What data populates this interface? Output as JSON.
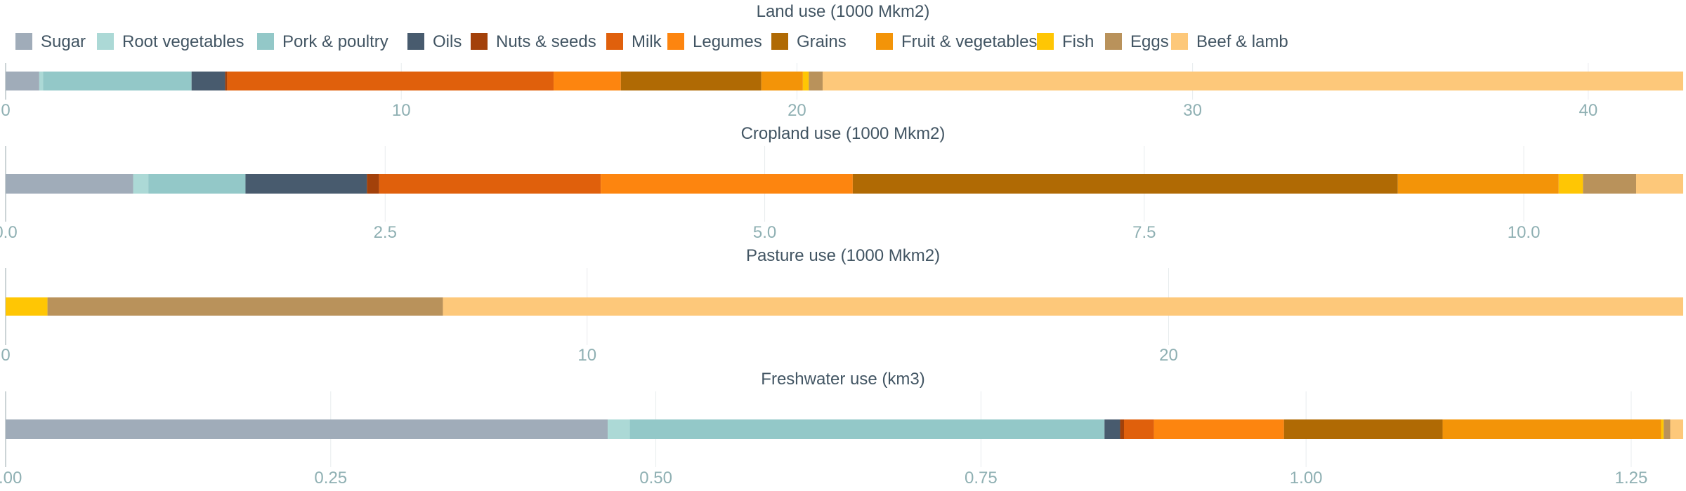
{
  "chart_data": {
    "type": "bar",
    "orientation": "horizontal-stacked",
    "legend": {
      "placement": "top-left",
      "entries": [
        {
          "name": "Sugar",
          "color": "#a0acb9"
        },
        {
          "name": "Root vegetables",
          "color": "#acd9d6"
        },
        {
          "name": "Pork & poultry",
          "color": "#93c8c8"
        },
        {
          "name": "Oils",
          "color": "#485b6e"
        },
        {
          "name": "Nuts & seeds",
          "color": "#a3410a"
        },
        {
          "name": "Milk",
          "color": "#e0600c"
        },
        {
          "name": "Legumes",
          "color": "#fd850f"
        },
        {
          "name": "Grains",
          "color": "#b06a04"
        },
        {
          "name": "Fruit & vegetables",
          "color": "#f39408"
        },
        {
          "name": "Fish",
          "color": "#ffc604"
        },
        {
          "name": "Eggs",
          "color": "#b9925b"
        },
        {
          "name": "Beef & lamb",
          "color": "#fdc87a"
        }
      ]
    },
    "grid": true,
    "panels": [
      {
        "title": "Land use (1000 Mkm2)",
        "xlim": [
          0,
          42.4
        ],
        "ticks": [
          0,
          10,
          20,
          30,
          40
        ],
        "tick_labels": [
          "0",
          "10",
          "20",
          "30",
          "40"
        ],
        "segments": [
          {
            "name": "Sugar",
            "value": 0.85
          },
          {
            "name": "Root vegetables",
            "value": 0.1
          },
          {
            "name": "Pork & poultry",
            "value": 3.75
          },
          {
            "name": "Oils",
            "value": 0.85
          },
          {
            "name": "Nuts & seeds",
            "value": 0.05
          },
          {
            "name": "Milk",
            "value": 8.25
          },
          {
            "name": "Legumes",
            "value": 1.7
          },
          {
            "name": "Grains",
            "value": 3.55
          },
          {
            "name": "Fruit & vegetables",
            "value": 1.05
          },
          {
            "name": "Fish",
            "value": 0.15
          },
          {
            "name": "Eggs",
            "value": 0.35
          },
          {
            "name": "Beef & lamb",
            "value": 21.75
          }
        ]
      },
      {
        "title": "Cropland use (1000 Mkm2)",
        "xlim": [
          0,
          11.05
        ],
        "ticks": [
          0,
          2.5,
          5,
          7.5,
          10
        ],
        "tick_labels": [
          "0.0",
          "2.5",
          "5.0",
          "7.5",
          "10.0"
        ],
        "segments": [
          {
            "name": "Sugar",
            "value": 0.84
          },
          {
            "name": "Root vegetables",
            "value": 0.1
          },
          {
            "name": "Pork & poultry",
            "value": 0.64
          },
          {
            "name": "Oils",
            "value": 0.8
          },
          {
            "name": "Nuts & seeds",
            "value": 0.08
          },
          {
            "name": "Milk",
            "value": 1.46
          },
          {
            "name": "Legumes",
            "value": 1.66
          },
          {
            "name": "Grains",
            "value": 3.59
          },
          {
            "name": "Fruit & vegetables",
            "value": 1.06
          },
          {
            "name": "Fish",
            "value": 0.16
          },
          {
            "name": "Eggs",
            "value": 0.35
          },
          {
            "name": "Beef & lamb",
            "value": 0.31
          }
        ]
      },
      {
        "title": "Pasture use (1000 Mkm2)",
        "xlim": [
          0,
          28.85
        ],
        "ticks": [
          0,
          10,
          20
        ],
        "tick_labels": [
          "0",
          "10",
          "20"
        ],
        "segments": [
          {
            "name": "Fish",
            "value": 0.72
          },
          {
            "name": "Eggs",
            "value": 6.8
          },
          {
            "name": "Beef & lamb",
            "value": 21.33
          }
        ]
      },
      {
        "title": "Freshwater use (km3)",
        "xlim": [
          0,
          1.29
        ],
        "ticks": [
          0,
          0.25,
          0.5,
          0.75,
          1.0,
          1.25
        ],
        "tick_labels": [
          "0.00",
          "0.25",
          "0.50",
          "0.75",
          "1.00",
          "1.25"
        ],
        "segments": [
          {
            "name": "Sugar",
            "value": 0.463
          },
          {
            "name": "Root vegetables",
            "value": 0.017
          },
          {
            "name": "Pork & poultry",
            "value": 0.365
          },
          {
            "name": "Oils",
            "value": 0.012
          },
          {
            "name": "Nuts & seeds",
            "value": 0.003
          },
          {
            "name": "Milk",
            "value": 0.023
          },
          {
            "name": "Legumes",
            "value": 0.1
          },
          {
            "name": "Grains",
            "value": 0.122
          },
          {
            "name": "Fruit & vegetables",
            "value": 0.168
          },
          {
            "name": "Fish",
            "value": 0.002
          },
          {
            "name": "Eggs",
            "value": 0.005
          },
          {
            "name": "Beef & lamb",
            "value": 0.01
          }
        ]
      }
    ]
  }
}
